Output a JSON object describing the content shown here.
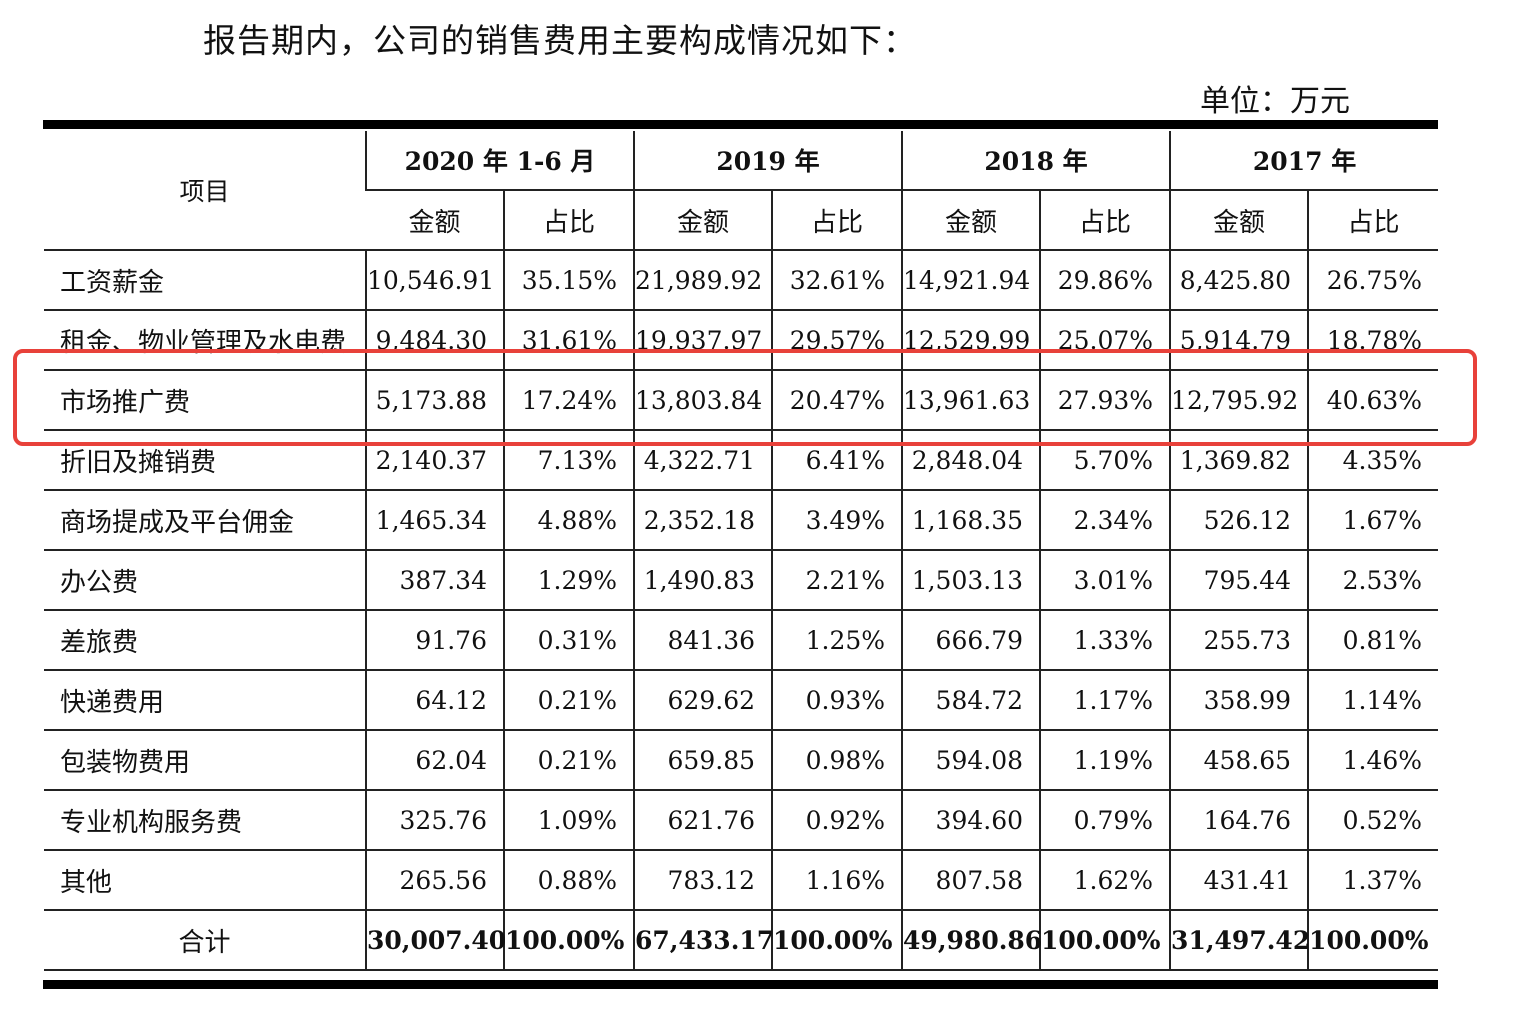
{
  "intro": "报告期内，公司的销售费用主要构成情况如下：",
  "unit": "单位：万元",
  "table": {
    "item_header": "项目",
    "periods": [
      "2020 年 1-6 月",
      "2019 年",
      "2018 年",
      "2017 年"
    ],
    "amount_label": "金额",
    "ratio_label": "占比",
    "rows": [
      {
        "name": "工资薪金",
        "cells": [
          "10,546.91",
          "35.15%",
          "21,989.92",
          "32.61%",
          "14,921.94",
          "29.86%",
          "8,425.80",
          "26.75%"
        ]
      },
      {
        "name": "租金、物业管理及水电费",
        "cells": [
          "9,484.30",
          "31.61%",
          "19,937.97",
          "29.57%",
          "12,529.99",
          "25.07%",
          "5,914.79",
          "18.78%"
        ]
      },
      {
        "name": "市场推广费",
        "cells": [
          "5,173.88",
          "17.24%",
          "13,803.84",
          "20.47%",
          "13,961.63",
          "27.93%",
          "12,795.92",
          "40.63%"
        ]
      },
      {
        "name": "折旧及摊销费",
        "cells": [
          "2,140.37",
          "7.13%",
          "4,322.71",
          "6.41%",
          "2,848.04",
          "5.70%",
          "1,369.82",
          "4.35%"
        ]
      },
      {
        "name": "商场提成及平台佣金",
        "cells": [
          "1,465.34",
          "4.88%",
          "2,352.18",
          "3.49%",
          "1,168.35",
          "2.34%",
          "526.12",
          "1.67%"
        ]
      },
      {
        "name": "办公费",
        "cells": [
          "387.34",
          "1.29%",
          "1,490.83",
          "2.21%",
          "1,503.13",
          "3.01%",
          "795.44",
          "2.53%"
        ]
      },
      {
        "name": "差旅费",
        "cells": [
          "91.76",
          "0.31%",
          "841.36",
          "1.25%",
          "666.79",
          "1.33%",
          "255.73",
          "0.81%"
        ]
      },
      {
        "name": "快递费用",
        "cells": [
          "64.12",
          "0.21%",
          "629.62",
          "0.93%",
          "584.72",
          "1.17%",
          "358.99",
          "1.14%"
        ]
      },
      {
        "name": "包装物费用",
        "cells": [
          "62.04",
          "0.21%",
          "659.85",
          "0.98%",
          "594.08",
          "1.19%",
          "458.65",
          "1.46%"
        ]
      },
      {
        "name": "专业机构服务费",
        "cells": [
          "325.76",
          "1.09%",
          "621.76",
          "0.92%",
          "394.60",
          "0.79%",
          "164.76",
          "0.52%"
        ]
      },
      {
        "name": "其他",
        "cells": [
          "265.56",
          "0.88%",
          "783.12",
          "1.16%",
          "807.58",
          "1.62%",
          "431.41",
          "1.37%"
        ]
      }
    ],
    "total": {
      "name": "合计",
      "cells": [
        "30,007.40",
        "100.00%",
        "67,433.17",
        "100.00%",
        "49,980.86",
        "100.00%",
        "31,497.42",
        "100.00%"
      ]
    }
  },
  "highlight_color": "#e8413a"
}
